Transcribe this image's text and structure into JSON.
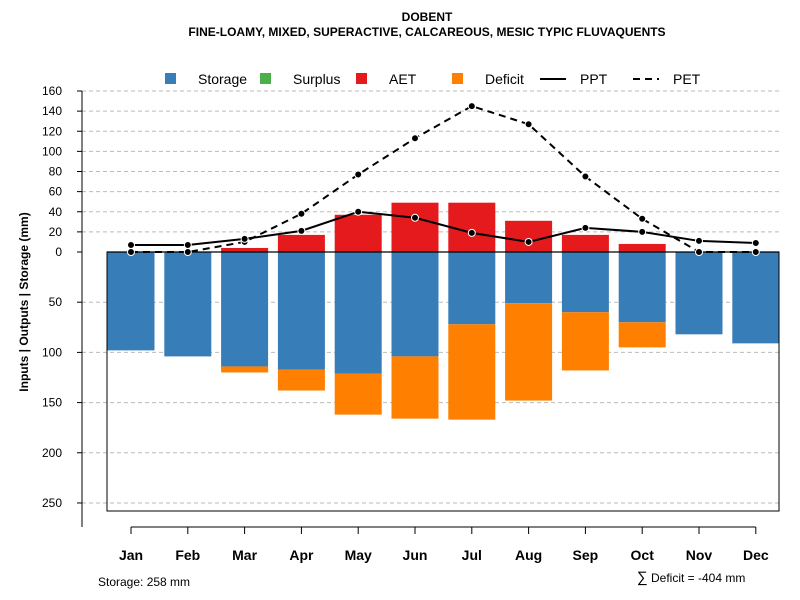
{
  "colors": {
    "storage": "#377EB8",
    "surplus": "#4DAF4A",
    "aet": "#E41A1C",
    "deficit": "#FF7F00",
    "grid": "#BBBBBB",
    "line": "#000000"
  },
  "chart_data": {
    "type": "bar",
    "title": "DOBENT",
    "subtitle": "FINE-LOAMY, MIXED, SUPERACTIVE, CALCAREOUS, MESIC TYPIC FLUVAQUENTS",
    "ylabel": "Inputs | Outputs | Storage     (mm)",
    "categories": [
      "Jan",
      "Feb",
      "Mar",
      "Apr",
      "May",
      "Jun",
      "Jul",
      "Aug",
      "Sep",
      "Oct",
      "Nov",
      "Dec"
    ],
    "legend": [
      {
        "name": "Storage",
        "kind": "box",
        "color_key": "storage"
      },
      {
        "name": "Surplus",
        "kind": "box",
        "color_key": "surplus"
      },
      {
        "name": "AET",
        "kind": "box",
        "color_key": "aet"
      },
      {
        "name": "Deficit",
        "kind": "box",
        "color_key": "deficit"
      },
      {
        "name": "PPT",
        "kind": "solid"
      },
      {
        "name": "PET",
        "kind": "dashed"
      }
    ],
    "series": [
      {
        "name": "AET",
        "values": [
          0,
          0,
          4,
          17,
          37,
          49,
          49,
          31,
          17,
          8,
          0,
          0
        ]
      },
      {
        "name": "Storage",
        "values": [
          98,
          104,
          114,
          117,
          121,
          104,
          72,
          51,
          60,
          70,
          82,
          91
        ]
      },
      {
        "name": "Deficit",
        "values": [
          0,
          0,
          6,
          21,
          41,
          62,
          95,
          97,
          58,
          25,
          0,
          0
        ]
      },
      {
        "name": "Surplus",
        "values": [
          0,
          0,
          0,
          0,
          0,
          0,
          0,
          0,
          0,
          0,
          0,
          0
        ]
      },
      {
        "name": "PPT",
        "values": [
          7,
          7,
          13,
          21,
          40,
          34,
          19,
          10,
          24,
          20,
          11,
          9
        ]
      },
      {
        "name": "PET",
        "values": [
          0,
          0,
          10,
          38,
          77,
          113,
          145,
          127,
          75,
          33,
          0,
          0
        ]
      }
    ],
    "upper_ticks": [
      "160",
      "140",
      "120",
      "100",
      "80",
      "60",
      "40",
      "20",
      "0"
    ],
    "upper_tick_values": [
      160,
      140,
      120,
      100,
      80,
      60,
      40,
      20,
      0
    ],
    "lower_ticks": [
      "50",
      "100",
      "150",
      "200",
      "250"
    ],
    "lower_tick_values": [
      50,
      100,
      150,
      200,
      250
    ],
    "upper_ylim": [
      0,
      160
    ],
    "lower_ylim": [
      0,
      258
    ]
  },
  "footer": {
    "storage_text": "Storage: 258 mm",
    "deficit_symbol": "∑",
    "deficit_text": "Deficit = -404 mm"
  }
}
